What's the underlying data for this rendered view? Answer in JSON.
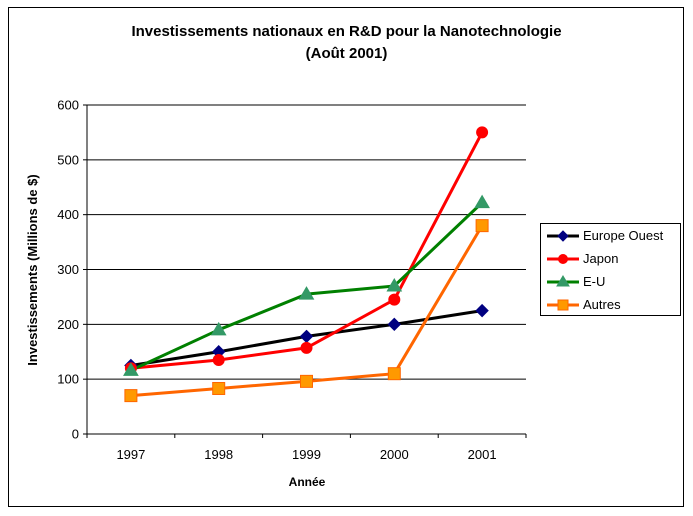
{
  "chart_data": {
    "type": "line",
    "title_line1": "Investissements nationaux en R&D pour la Nanotechnologie",
    "title_line2": "(Août 2001)",
    "xlabel": "Année",
    "ylabel": "Investissements (Millions de $)",
    "categories": [
      "1997",
      "1998",
      "1999",
      "2000",
      "2001"
    ],
    "ylim": [
      0,
      600
    ],
    "yticks": [
      0,
      100,
      200,
      300,
      400,
      500,
      600
    ],
    "grid": "horizontal",
    "legend_position": "right",
    "series": [
      {
        "name": "Europe Ouest",
        "color": "#000000",
        "marker_color": "#000080",
        "marker": "diamond",
        "values": [
          125,
          150,
          178,
          200,
          225
        ]
      },
      {
        "name": "Japon",
        "color": "#FF0000",
        "marker_color": "#FF0000",
        "marker": "circle",
        "values": [
          120,
          135,
          157,
          245,
          550
        ]
      },
      {
        "name": "E-U",
        "color": "#008000",
        "marker_color": "#339966",
        "marker": "triangle",
        "values": [
          116,
          190,
          255,
          270,
          422
        ]
      },
      {
        "name": "Autres",
        "color": "#FF6600",
        "marker_color": "#FF9900",
        "marker": "square",
        "values": [
          70,
          83,
          96,
          110,
          380
        ]
      }
    ]
  }
}
